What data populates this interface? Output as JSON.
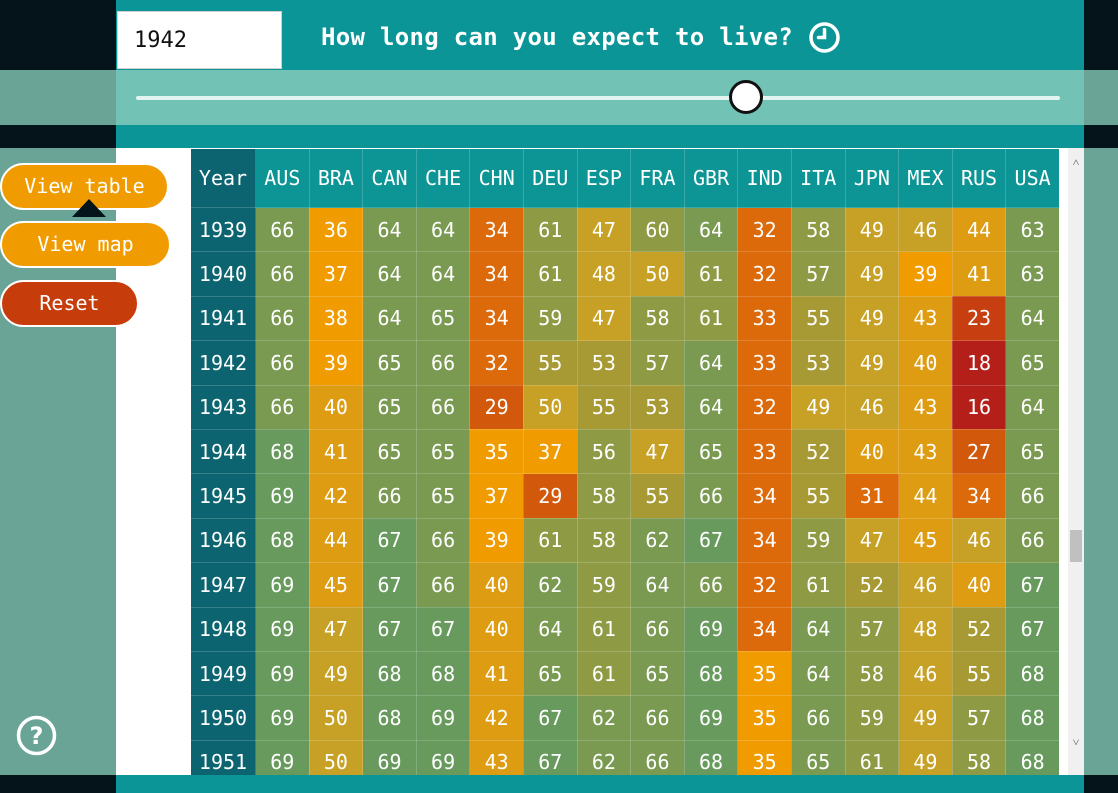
{
  "header": {
    "year_value": "1942",
    "title": "How long can you expect to live?",
    "clock_icon": "clock-icon"
  },
  "slider": {
    "level_fraction": 0.66
  },
  "buttons": {
    "view_table": "View table",
    "view_map": "View map",
    "reset": "Reset",
    "active": "view_table"
  },
  "help_icon": "question-circle-icon",
  "colors": {
    "teal": "#0c9596",
    "light_teal": "#72c2b5",
    "dark_teal": "#0b6470",
    "orange": "#f09c00",
    "red": "#c63c0a",
    "scale": [
      "#b51f19",
      "#c73f10",
      "#d2590b",
      "#dc6a0a",
      "#f09c00",
      "#dd9c12",
      "#c7a026",
      "#a79a34",
      "#8e9b44",
      "#7a9a52",
      "#689a5e"
    ]
  },
  "table": {
    "headers": [
      "Year",
      "AUS",
      "BRA",
      "CAN",
      "CHE",
      "CHN",
      "DEU",
      "ESP",
      "FRA",
      "GBR",
      "IND",
      "ITA",
      "JPN",
      "MEX",
      "RUS",
      "USA"
    ],
    "rows": [
      [
        "1939",
        "66",
        "36",
        "64",
        "64",
        "34",
        "61",
        "47",
        "60",
        "64",
        "32",
        "58",
        "49",
        "46",
        "44",
        "63"
      ],
      [
        "1940",
        "66",
        "37",
        "64",
        "64",
        "34",
        "61",
        "48",
        "50",
        "61",
        "32",
        "57",
        "49",
        "39",
        "41",
        "63"
      ],
      [
        "1941",
        "66",
        "38",
        "64",
        "65",
        "34",
        "59",
        "47",
        "58",
        "61",
        "33",
        "55",
        "49",
        "43",
        "23",
        "64"
      ],
      [
        "1942",
        "66",
        "39",
        "65",
        "66",
        "32",
        "55",
        "53",
        "57",
        "64",
        "33",
        "53",
        "49",
        "40",
        "18",
        "65"
      ],
      [
        "1943",
        "66",
        "40",
        "65",
        "66",
        "29",
        "50",
        "55",
        "53",
        "64",
        "32",
        "49",
        "46",
        "43",
        "16",
        "64"
      ],
      [
        "1944",
        "68",
        "41",
        "65",
        "65",
        "35",
        "37",
        "56",
        "47",
        "65",
        "33",
        "52",
        "40",
        "43",
        "27",
        "65"
      ],
      [
        "1945",
        "69",
        "42",
        "66",
        "65",
        "37",
        "29",
        "58",
        "55",
        "66",
        "34",
        "55",
        "31",
        "44",
        "34",
        "66"
      ],
      [
        "1946",
        "68",
        "44",
        "67",
        "66",
        "39",
        "61",
        "58",
        "62",
        "67",
        "34",
        "59",
        "47",
        "45",
        "46",
        "66"
      ],
      [
        "1947",
        "69",
        "45",
        "67",
        "66",
        "40",
        "62",
        "59",
        "64",
        "66",
        "32",
        "61",
        "52",
        "46",
        "40",
        "67"
      ],
      [
        "1948",
        "69",
        "47",
        "67",
        "67",
        "40",
        "64",
        "61",
        "66",
        "69",
        "34",
        "64",
        "57",
        "48",
        "52",
        "67"
      ],
      [
        "1949",
        "69",
        "49",
        "68",
        "68",
        "41",
        "65",
        "61",
        "65",
        "68",
        "35",
        "64",
        "58",
        "46",
        "55",
        "68"
      ],
      [
        "1950",
        "69",
        "50",
        "68",
        "69",
        "42",
        "67",
        "62",
        "66",
        "69",
        "35",
        "66",
        "59",
        "49",
        "57",
        "68"
      ],
      [
        "1951",
        "69",
        "50",
        "69",
        "69",
        "43",
        "67",
        "62",
        "66",
        "68",
        "35",
        "65",
        "61",
        "49",
        "58",
        "68"
      ]
    ]
  },
  "scrollbar": {
    "up_glyph": "˄",
    "down_glyph": "˅"
  }
}
